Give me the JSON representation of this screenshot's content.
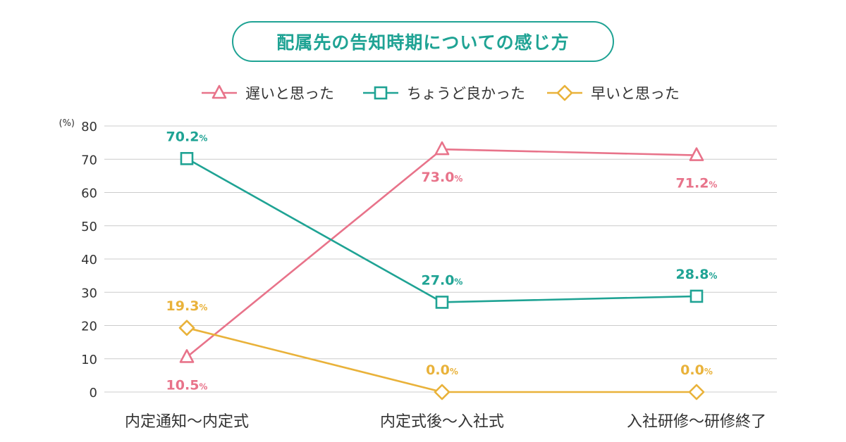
{
  "title": "配属先の告知時期についての感じ方",
  "colors": {
    "late": "#e8738a",
    "right": "#1fa394",
    "early": "#e9b23a",
    "grid": "#cccccc",
    "axis_text": "#333333"
  },
  "chart_data": {
    "type": "line",
    "title": "配属先の告知時期についての感じ方",
    "unit_label": "(%)",
    "categories": [
      "内定通知〜内定式",
      "内定式後〜入社式",
      "入社研修〜研修終了"
    ],
    "ylim": [
      0,
      80
    ],
    "yticks": [
      0,
      10,
      20,
      30,
      40,
      50,
      60,
      70,
      80
    ],
    "grid": true,
    "legend_position": "top-center",
    "series": [
      {
        "name": "遅いと思った",
        "marker": "triangle",
        "color": "#e8738a",
        "values": [
          10.5,
          73.0,
          71.2
        ],
        "labels": [
          "10.5",
          "73.0",
          "71.2"
        ],
        "label_pos": [
          "below",
          "below",
          "below"
        ]
      },
      {
        "name": "ちょうど良かった",
        "marker": "square",
        "color": "#1fa394",
        "values": [
          70.2,
          27.0,
          28.8
        ],
        "labels": [
          "70.2",
          "27.0",
          "28.8"
        ],
        "label_pos": [
          "above",
          "above",
          "above"
        ]
      },
      {
        "name": "早いと思った",
        "marker": "diamond",
        "color": "#e9b23a",
        "values": [
          19.3,
          0.0,
          0.0
        ],
        "labels": [
          "19.3",
          "0.0",
          "0.0"
        ],
        "label_pos": [
          "above",
          "above",
          "above"
        ]
      }
    ],
    "value_suffix": "%"
  }
}
